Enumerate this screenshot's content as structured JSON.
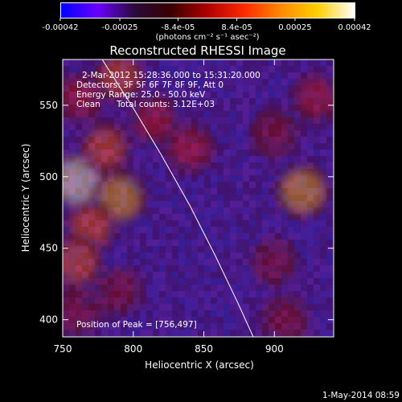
{
  "colorbar": {
    "tick_labels": [
      "-0.00042",
      "-0.00025",
      "-8.4e-05",
      "8.4e-05",
      "0.00025",
      "0.00042"
    ],
    "tick_values": [
      -0.00042,
      -0.00025,
      -8.4e-05,
      8.4e-05,
      0.00025,
      0.00042
    ],
    "range": [
      -0.00042,
      0.00042
    ],
    "unit_label": "(photons cm⁻² s⁻¹ asec⁻²)",
    "stops": [
      "#0000ff",
      "#6a00ff",
      "#2a0a3a",
      "#3a0000",
      "#b00000",
      "#ff2a00",
      "#ff8a00",
      "#ffd000",
      "#ffffff"
    ]
  },
  "chart_data": {
    "type": "heatmap",
    "title": "Reconstructed RHESSI Image",
    "xlabel": "Heliocentric X (arcsec)",
    "ylabel": "Heliocentric Y (arcsec)",
    "xlim": [
      750,
      942
    ],
    "ylim": [
      388,
      582
    ],
    "x_ticks": [
      750,
      800,
      850,
      900
    ],
    "y_ticks": [
      400,
      450,
      500,
      550
    ],
    "info": {
      "time": "2-Mar-2012 15:28:36.000 to 15:31:20.000",
      "detectors": "Detectors: 3F 5F 6F 7F 8F 9F, Att 0",
      "energy": "Energy Range: 25.0 - 50.0 keV",
      "method": "Clean",
      "counts": "Total counts: 3.12E+03"
    },
    "peak_label": "Position of Peak = [756,497]",
    "peak": [
      756,
      497
    ],
    "limb": [
      [
        778,
        582
      ],
      [
        800,
        548
      ],
      [
        820,
        515
      ],
      [
        840,
        480
      ],
      [
        858,
        445
      ],
      [
        874,
        412
      ],
      [
        885,
        388
      ]
    ],
    "hotspots": [
      {
        "x": 760,
        "y": 497,
        "value": 1.0
      },
      {
        "x": 790,
        "y": 485,
        "value": 0.9
      },
      {
        "x": 770,
        "y": 465,
        "value": 0.75
      },
      {
        "x": 760,
        "y": 440,
        "value": 0.8
      },
      {
        "x": 780,
        "y": 520,
        "value": 0.75
      },
      {
        "x": 790,
        "y": 570,
        "value": 0.7
      },
      {
        "x": 762,
        "y": 555,
        "value": 0.6
      },
      {
        "x": 840,
        "y": 520,
        "value": 0.65
      },
      {
        "x": 815,
        "y": 540,
        "value": 0.6
      },
      {
        "x": 920,
        "y": 490,
        "value": 0.9
      },
      {
        "x": 900,
        "y": 530,
        "value": 0.55
      },
      {
        "x": 930,
        "y": 555,
        "value": 0.6
      },
      {
        "x": 908,
        "y": 400,
        "value": 0.55
      },
      {
        "x": 900,
        "y": 440,
        "value": 0.5
      },
      {
        "x": 760,
        "y": 405,
        "value": 0.55
      },
      {
        "x": 790,
        "y": 420,
        "value": 0.5
      }
    ]
  },
  "footer": {
    "date": "1-May-2014 08:59"
  }
}
